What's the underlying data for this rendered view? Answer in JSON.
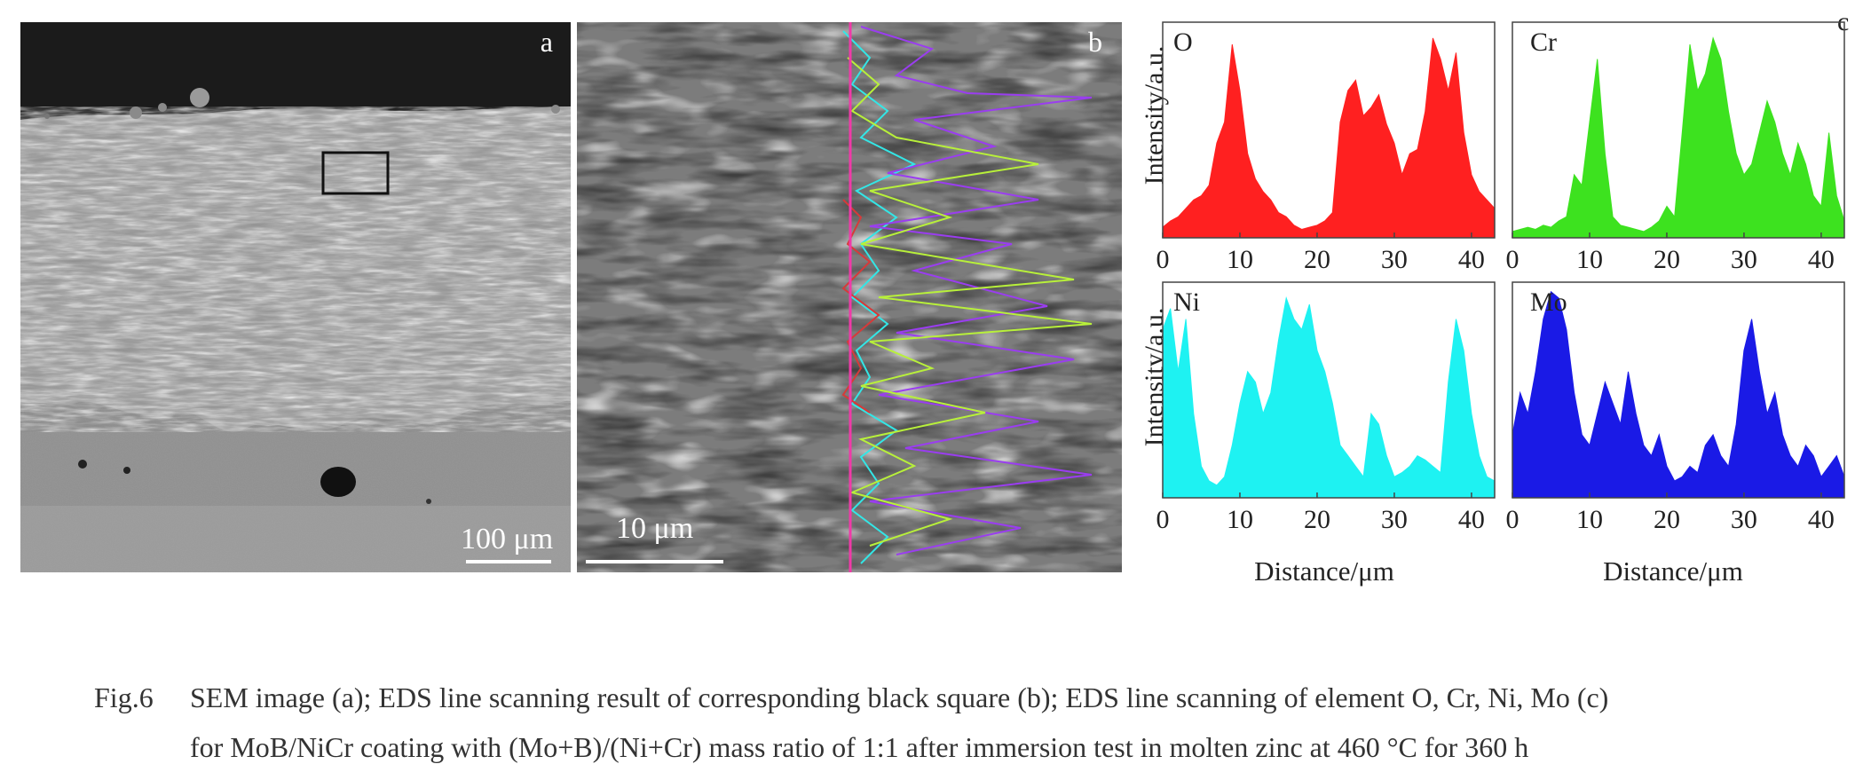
{
  "panels": {
    "a": {
      "letter": "a",
      "scale_bar": "100 μm"
    },
    "b": {
      "letter": "b",
      "scale_bar": "10 μm"
    },
    "c": {
      "letter": "c"
    }
  },
  "eds": {
    "ylabel": "Intensity/a.u.",
    "xlabel": "Distance/μm"
  },
  "colors": {
    "O": "#ff2020",
    "Cr": "#3de21f",
    "Ni": "#1ef2f2",
    "Mo": "#1a1ae6"
  },
  "chart_data": [
    {
      "type": "area",
      "element": "O",
      "label": "O",
      "color": "#ff2020",
      "xlabel": "",
      "ylabel": "Intensity/a.u.",
      "xlim": [
        0,
        43
      ],
      "xticks": [
        0,
        10,
        20,
        30,
        40
      ],
      "x": [
        0,
        1,
        2,
        3,
        4,
        5,
        6,
        7,
        8,
        9,
        10,
        11,
        12,
        13,
        14,
        15,
        16,
        17,
        18,
        19,
        20,
        21,
        22,
        23,
        24,
        25,
        26,
        27,
        28,
        29,
        30,
        31,
        32,
        33,
        34,
        35,
        36,
        37,
        38,
        39,
        40,
        41,
        42,
        43
      ],
      "values": [
        5,
        8,
        10,
        14,
        18,
        20,
        25,
        45,
        55,
        92,
        70,
        40,
        28,
        22,
        18,
        12,
        10,
        6,
        4,
        5,
        6,
        8,
        12,
        55,
        70,
        75,
        58,
        62,
        68,
        54,
        45,
        30,
        40,
        42,
        60,
        95,
        85,
        70,
        88,
        50,
        30,
        22,
        18,
        14
      ]
    },
    {
      "type": "area",
      "element": "Cr",
      "label": "Cr",
      "color": "#3de21f",
      "xlabel": "",
      "ylabel": "",
      "xlim": [
        0,
        43
      ],
      "xticks": [
        0,
        10,
        20,
        30,
        40
      ],
      "x": [
        0,
        1,
        2,
        3,
        4,
        5,
        6,
        7,
        8,
        9,
        10,
        11,
        12,
        13,
        14,
        15,
        16,
        17,
        18,
        19,
        20,
        21,
        22,
        23,
        24,
        25,
        26,
        27,
        28,
        29,
        30,
        31,
        32,
        33,
        34,
        35,
        36,
        37,
        38,
        39,
        40,
        41,
        42,
        43
      ],
      "values": [
        3,
        4,
        5,
        4,
        6,
        5,
        8,
        10,
        30,
        25,
        55,
        85,
        40,
        10,
        6,
        5,
        4,
        3,
        5,
        8,
        15,
        10,
        50,
        92,
        70,
        78,
        95,
        85,
        60,
        40,
        30,
        35,
        50,
        65,
        55,
        40,
        30,
        45,
        35,
        20,
        15,
        50,
        20,
        8
      ]
    },
    {
      "type": "area",
      "element": "Ni",
      "label": "Ni",
      "color": "#1ef2f2",
      "xlabel": "Distance/μm",
      "ylabel": "Intensity/a.u.",
      "xlim": [
        0,
        43
      ],
      "xticks": [
        0,
        10,
        20,
        30,
        40
      ],
      "x": [
        0,
        1,
        2,
        3,
        4,
        5,
        6,
        7,
        8,
        9,
        10,
        11,
        12,
        13,
        14,
        15,
        16,
        17,
        18,
        19,
        20,
        21,
        22,
        23,
        24,
        25,
        26,
        27,
        28,
        29,
        30,
        31,
        32,
        33,
        34,
        35,
        36,
        37,
        38,
        39,
        40,
        41,
        42,
        43
      ],
      "values": [
        80,
        90,
        60,
        85,
        40,
        15,
        8,
        6,
        10,
        25,
        45,
        60,
        55,
        40,
        50,
        75,
        95,
        85,
        80,
        92,
        70,
        60,
        45,
        25,
        20,
        15,
        10,
        40,
        35,
        20,
        10,
        12,
        15,
        20,
        18,
        15,
        12,
        55,
        85,
        70,
        40,
        20,
        10,
        8
      ]
    },
    {
      "type": "area",
      "element": "Mo",
      "label": "Mo",
      "color": "#1a1ae6",
      "xlabel": "Distance/μm",
      "ylabel": "",
      "xlim": [
        0,
        43
      ],
      "xticks": [
        0,
        10,
        20,
        30,
        40
      ],
      "x": [
        0,
        1,
        2,
        3,
        4,
        5,
        6,
        7,
        8,
        9,
        10,
        11,
        12,
        13,
        14,
        15,
        16,
        17,
        18,
        19,
        20,
        21,
        22,
        23,
        24,
        25,
        26,
        27,
        28,
        29,
        30,
        31,
        32,
        33,
        34,
        35,
        36,
        37,
        38,
        39,
        40,
        41,
        42,
        43
      ],
      "values": [
        30,
        50,
        40,
        60,
        85,
        98,
        95,
        80,
        50,
        30,
        25,
        40,
        55,
        45,
        35,
        60,
        40,
        25,
        20,
        30,
        15,
        8,
        10,
        15,
        12,
        25,
        30,
        20,
        15,
        35,
        70,
        85,
        60,
        40,
        50,
        30,
        20,
        15,
        25,
        20,
        10,
        15,
        20,
        10
      ]
    }
  ],
  "caption": {
    "label": "Fig.6",
    "line1": "SEM image (a); EDS line scanning result of corresponding black square (b); EDS line scanning of element O, Cr, Ni, Mo (c)",
    "line2": "for MoB/NiCr coating with (Mo+B)/(Ni+Cr) mass ratio of 1:1 after immersion test in molten zinc at 460 °C for 360 h"
  }
}
